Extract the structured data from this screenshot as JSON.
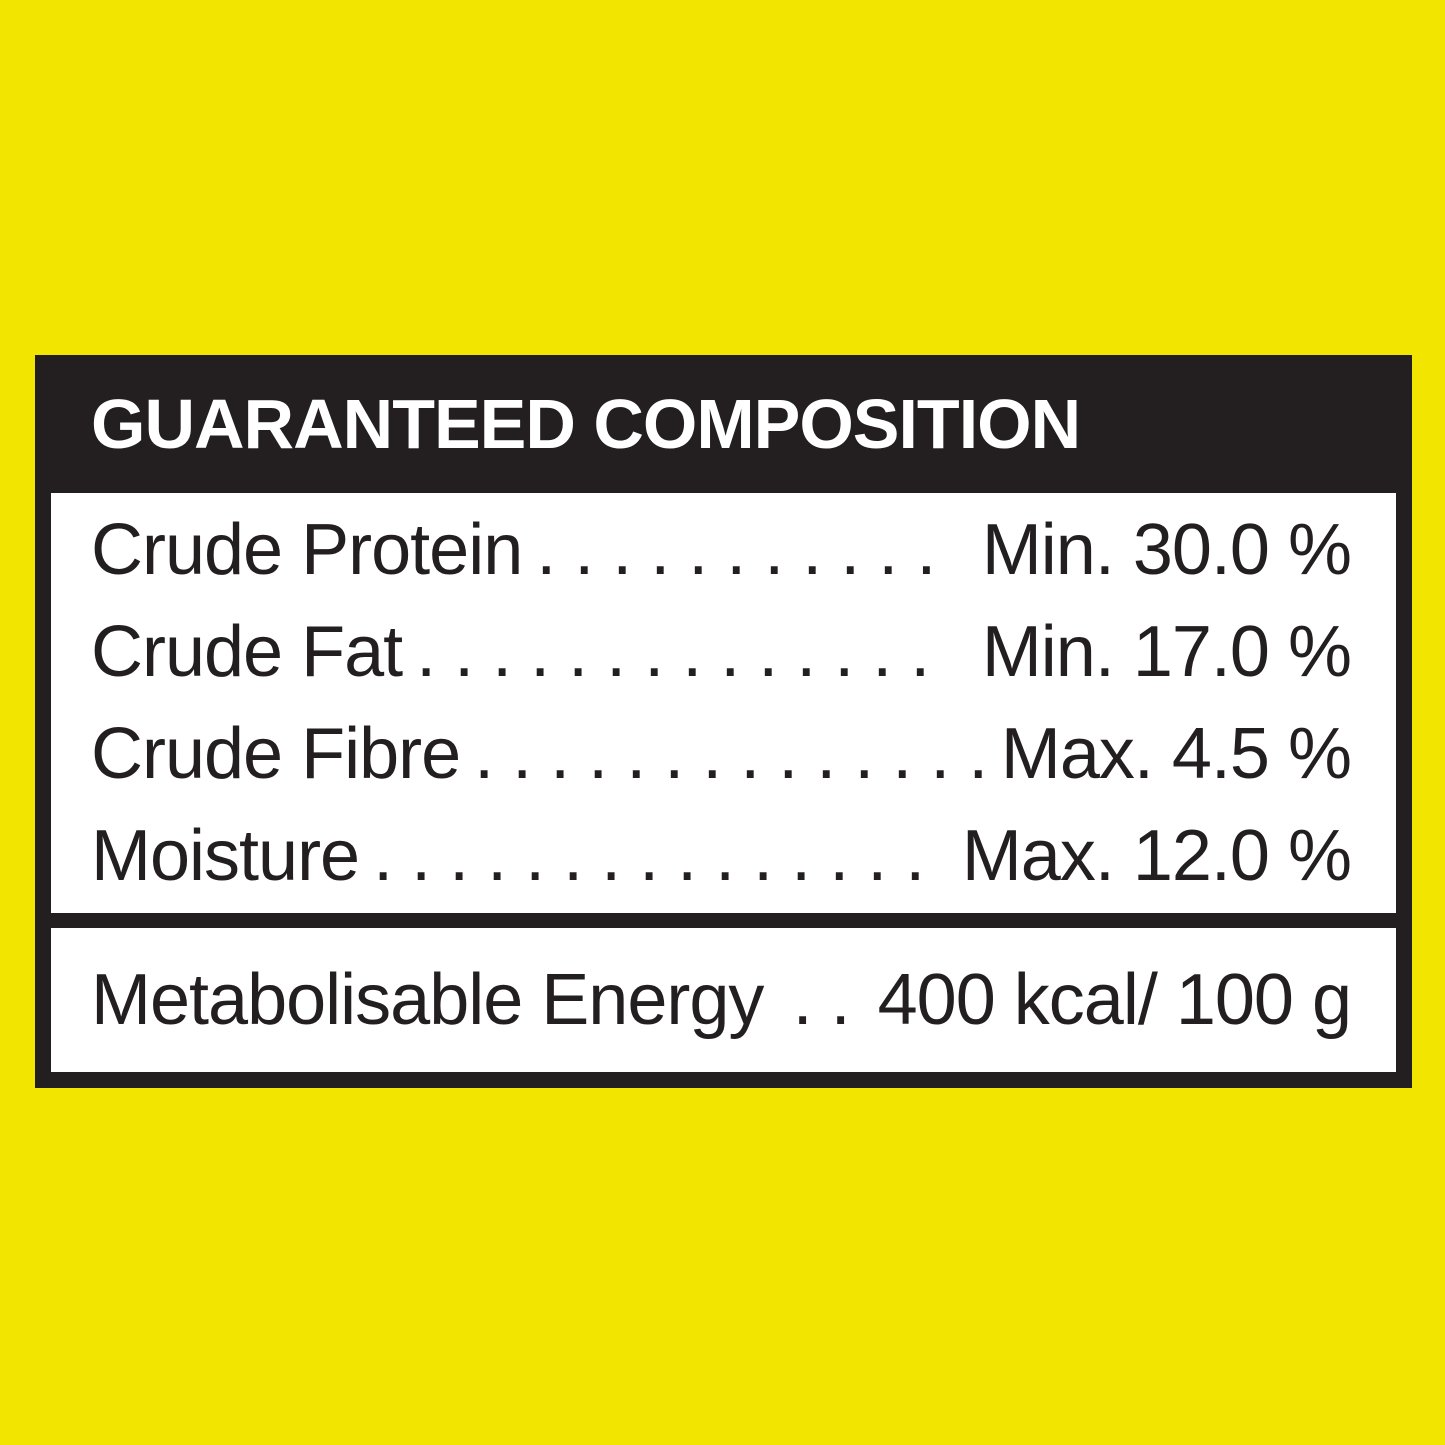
{
  "colors": {
    "background_yellow": "#F2E500",
    "panel_black": "#231F20",
    "panel_white": "#FFFFFF",
    "header_text": "#FFFFFF",
    "body_text": "#231F20"
  },
  "panel": {
    "header": {
      "title": "GUARANTEED COMPOSITION"
    },
    "composition_rows": [
      {
        "label": "Crude Protein",
        "leader_dots": ". . . . . . . . . . .",
        "value": "Min. 30.0 %"
      },
      {
        "label": "Crude Fat",
        "leader_dots": ". . . . . . . . . . . . . .",
        "value": "Min. 17.0 %"
      },
      {
        "label": "Crude Fibre",
        "leader_dots": ". . . . . . . . . . . . . . .",
        "value": "Max. 4.5 %"
      },
      {
        "label": "Moisture",
        "leader_dots": ". . . . . . . . . . . . . . . .",
        "value": "Max. 12.0 %"
      }
    ],
    "energy_row": {
      "label": "Metabolisable Energy",
      "leader_dots": ". .",
      "value": "400 kcal/ 100 g"
    }
  }
}
